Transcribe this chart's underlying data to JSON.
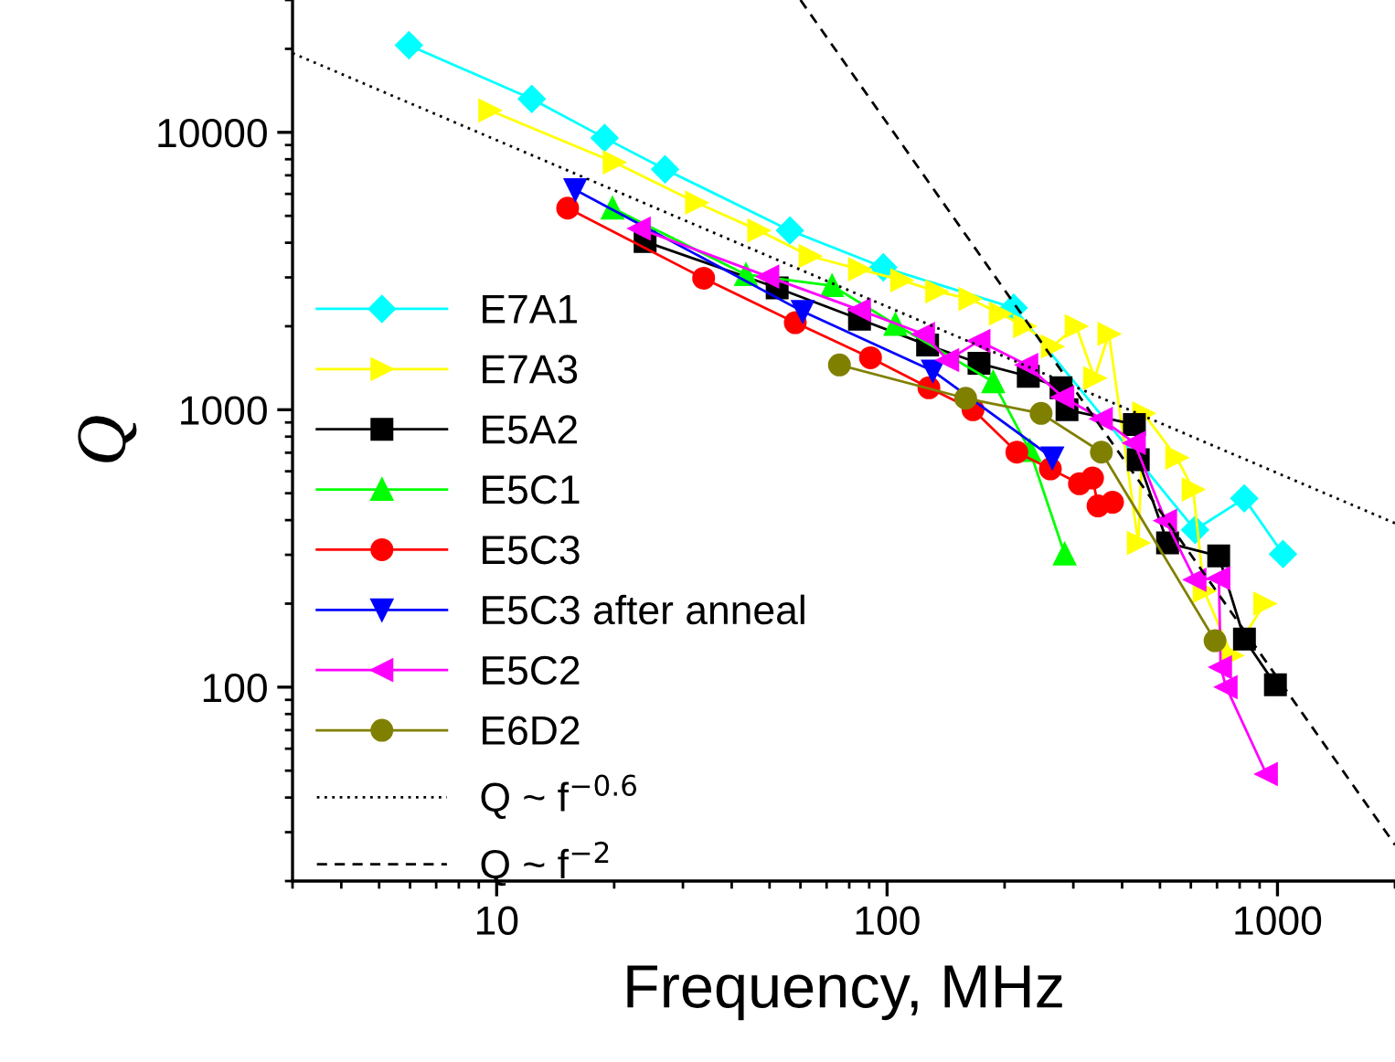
{
  "chart_data": {
    "type": "line",
    "xlabel": "Frequency, MHz",
    "ylabel": "Q",
    "log": "xy",
    "xlim": [
      3,
      2000
    ],
    "ylim": [
      20,
      30000
    ],
    "xticks": [
      10,
      100,
      1000
    ],
    "yticks": [
      100,
      1000,
      10000
    ],
    "grid": false,
    "legend": "left",
    "series": [
      {
        "name": "E7A1",
        "color": "#00ffff",
        "marker": "diamond",
        "x": [
          5.96,
          12.3,
          18.9,
          27,
          56.4,
          97.8,
          211,
          615,
          822,
          1033
        ],
        "values": [
          20600,
          13200,
          9550,
          7360,
          4430,
          3260,
          2330,
          369,
          479,
          302
        ]
      },
      {
        "name": "E7A3",
        "color": "#ffff00",
        "marker": "triangle-right",
        "x": [
          9.6,
          20,
          32.5,
          46.9,
          63.5,
          85,
          109,
          134,
          163,
          195,
          225,
          265,
          305,
          340,
          370,
          440,
          454,
          552,
          608,
          649,
          764,
          927
        ],
        "values": [
          12000,
          7800,
          5580,
          4430,
          3580,
          3210,
          2930,
          2670,
          2510,
          2220,
          2000,
          1690,
          2000,
          1300,
          1875,
          331,
          970,
          672,
          516,
          222,
          130,
          200
        ]
      },
      {
        "name": "E5A2",
        "color": "#000000",
        "marker": "square",
        "x": [
          24,
          52.3,
          85,
          127,
          172,
          230,
          279,
          289,
          430,
          440,
          523,
          707,
          823,
          988
        ],
        "values": [
          4040,
          2750,
          2120,
          1710,
          1470,
          1320,
          1200,
          1000,
          885,
          661,
          331,
          297,
          149,
          102
        ]
      },
      {
        "name": "E5C1",
        "color": "#00ff00",
        "marker": "triangle",
        "x": [
          19.8,
          43.5,
          72.3,
          105,
          187,
          232,
          285
        ],
        "values": [
          5330,
          3070,
          2800,
          2030,
          1260,
          713,
          302
        ]
      },
      {
        "name": "E5C3",
        "color": "#ff0000",
        "marker": "circle",
        "x": [
          15.2,
          33.9,
          58.2,
          90.7,
          128,
          166,
          215,
          262,
          311,
          336,
          347,
          378
        ],
        "values": [
          5330,
          2980,
          2060,
          1540,
          1200,
          1000,
          703,
          612,
          541,
          567,
          450,
          464
        ]
      },
      {
        "name": "E5C3 after anneal",
        "color": "#0000ff",
        "marker": "triangle-down",
        "x": [
          15.9,
          60.8,
          131,
          265
        ],
        "values": [
          6210,
          2260,
          1380,
          671
        ]
      },
      {
        "name": "E5C2",
        "color": "#ff00ff",
        "marker": "triangle-left",
        "x": [
          23.2,
          49.5,
          85,
          124,
          143,
          172,
          228,
          282,
          354,
          430,
          517,
          615,
          708,
          715,
          739,
          937
        ],
        "values": [
          4500,
          3020,
          2290,
          1875,
          1510,
          1770,
          1450,
          1110,
          927,
          759,
          398,
          244,
          247,
          118,
          100,
          48.6
        ]
      },
      {
        "name": "E6D2",
        "color": "#808000",
        "marker": "circle",
        "x": [
          75.5,
          159,
          248,
          354,
          692
        ],
        "values": [
          1450,
          1100,
          970,
          703,
          147
        ]
      },
      {
        "name": "Q ~ f$^{−0.6}$",
        "color": "#000000",
        "marker": "none",
        "line_style": "dotted",
        "x": [
          3,
          2000
        ],
        "values": [
          19300,
          390
        ]
      },
      {
        "name": "Q ~ f$^{−2}$",
        "color": "#000000",
        "marker": "none",
        "line_style": "dashed",
        "x": [
          60,
          2000
        ],
        "values": [
          30000,
          27
        ]
      }
    ]
  }
}
